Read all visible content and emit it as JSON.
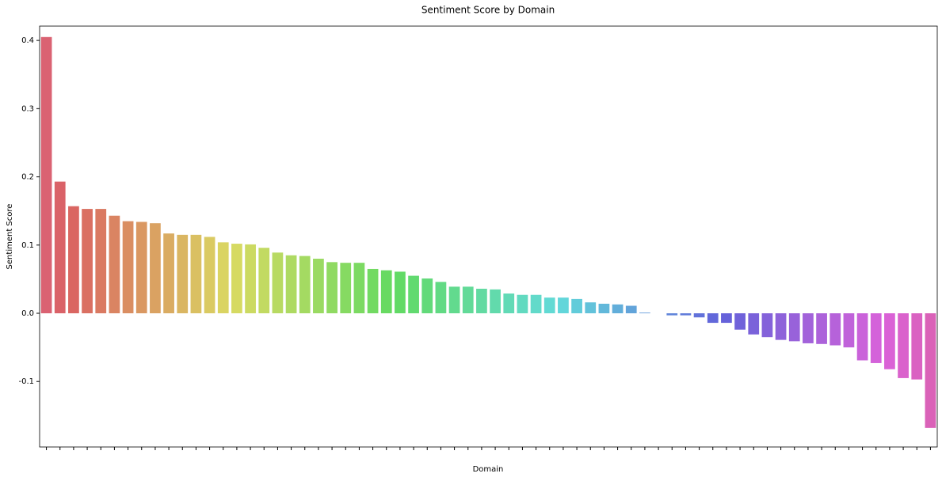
{
  "chart_data": {
    "type": "bar",
    "title": "Sentiment Score by Domain",
    "xlabel": "Domain",
    "ylabel": "Sentiment Score",
    "categories": [
      null,
      null,
      null,
      null,
      null,
      null,
      null,
      null,
      null,
      null,
      null,
      null,
      null,
      null,
      null,
      null,
      null,
      null,
      null,
      null,
      null,
      null,
      null,
      null,
      null,
      null,
      null,
      null,
      null,
      null,
      null,
      null,
      null,
      null,
      null,
      null,
      null,
      null,
      null,
      null,
      null,
      null,
      null,
      null,
      null,
      null,
      null,
      null,
      null,
      null,
      null,
      null,
      null,
      null,
      null,
      null,
      null,
      null,
      null,
      null,
      null,
      null,
      null,
      null,
      null,
      null
    ],
    "values": [
      0.405,
      0.193,
      0.157,
      0.153,
      0.153,
      0.143,
      0.135,
      0.134,
      0.132,
      0.117,
      0.115,
      0.115,
      0.112,
      0.104,
      0.102,
      0.101,
      0.096,
      0.089,
      0.085,
      0.084,
      0.08,
      0.075,
      0.074,
      0.074,
      0.065,
      0.063,
      0.061,
      0.055,
      0.051,
      0.046,
      0.039,
      0.039,
      0.036,
      0.035,
      0.029,
      0.027,
      0.027,
      0.023,
      0.023,
      0.021,
      0.016,
      0.014,
      0.013,
      0.011,
      0.001,
      0,
      -0.003,
      -0.003,
      -0.006,
      -0.014,
      -0.014,
      -0.024,
      -0.031,
      -0.035,
      -0.039,
      -0.041,
      -0.044,
      -0.045,
      -0.047,
      -0.05,
      -0.069,
      -0.073,
      -0.082,
      -0.095,
      -0.097,
      -0.168
    ],
    "palette": "husl",
    "ylim": [
      -0.196,
      0.421
    ],
    "yticks": [
      -0.1,
      0.0,
      0.1,
      0.2,
      0.3,
      0.4
    ],
    "grid": false
  }
}
